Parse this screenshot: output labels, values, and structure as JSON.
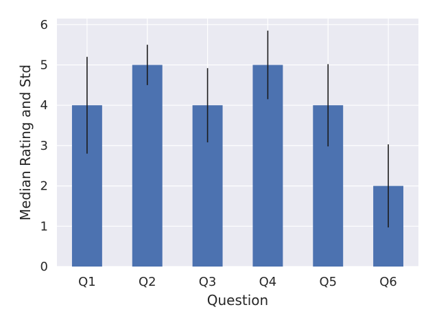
{
  "chart_data": {
    "type": "bar",
    "title": "",
    "xlabel": "Question",
    "ylabel": "Median Rating and Std",
    "categories": [
      "Q1",
      "Q2",
      "Q3",
      "Q4",
      "Q5",
      "Q6"
    ],
    "values": [
      4,
      5,
      4,
      5,
      4,
      2
    ],
    "errors": [
      1.2,
      0.5,
      0.92,
      0.85,
      1.02,
      1.03
    ],
    "ylim": [
      0,
      6.15
    ],
    "yticks": [
      0,
      1,
      2,
      3,
      4,
      5,
      6
    ],
    "grid": true,
    "legend": "none",
    "colors": {
      "bar": "#4c72b0",
      "error_bar": "#1a1a1a",
      "plot_background": "#eaeaf2",
      "grid": "#ffffff",
      "text": "#262626"
    }
  }
}
